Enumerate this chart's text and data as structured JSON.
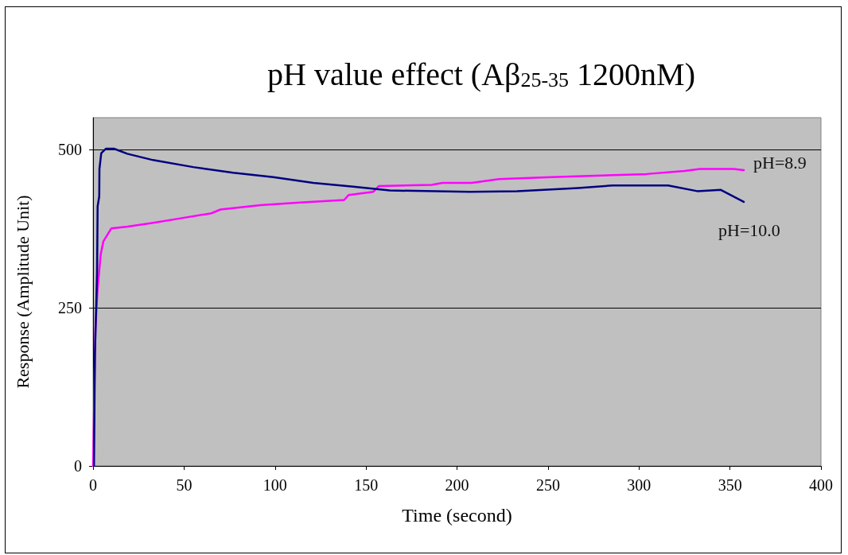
{
  "chart_data": {
    "type": "line",
    "title": "pH value effect (Aβ$_{25-35}$ 1200nM)",
    "xlabel": "Time (second)",
    "ylabel": "Response (Amplitude Unit)",
    "xlim": [
      0,
      400
    ],
    "xticks": [
      0,
      50,
      100,
      150,
      200,
      250,
      300,
      350,
      400
    ],
    "ylim": [
      0,
      550
    ],
    "yticks": [
      0,
      250,
      500
    ],
    "grid": "y",
    "marker": "none",
    "line_style": "solid",
    "series": [
      {
        "name": "pH=8.9",
        "color": "#ff00ff",
        "x": [
          0,
          0.3,
          1.3,
          2.5,
          4.2,
          5.7,
          10,
          19,
          33,
          48,
          65,
          70,
          92,
          113.5,
          138,
          140.5,
          154,
          157,
          186,
          192,
          208,
          223,
          252,
          304,
          325,
          333.5,
          352,
          357.6
        ],
        "values": [
          0,
          49,
          217,
          280,
          334,
          355,
          375,
          378,
          384,
          391,
          399,
          405,
          412,
          416,
          420,
          428,
          433,
          442,
          444,
          447,
          447,
          453,
          456,
          461,
          466,
          469,
          469,
          467
        ]
      },
      {
        "name": "pH=10.0",
        "color": "#000080",
        "x": [
          0.5,
          1,
          2.2,
          2.5,
          3.4,
          3.5,
          4.5,
          7,
          11.5,
          18.8,
          33,
          55,
          77,
          99,
          121,
          143,
          163,
          207,
          233,
          266.5,
          285.5,
          316,
          332,
          345,
          357.6
        ],
        "values": [
          0,
          175,
          305,
          410,
          426,
          469,
          494,
          501,
          501,
          493,
          483,
          472,
          463,
          456,
          447,
          441,
          435,
          433,
          434,
          439,
          443,
          443,
          434,
          436,
          417
        ]
      }
    ]
  }
}
